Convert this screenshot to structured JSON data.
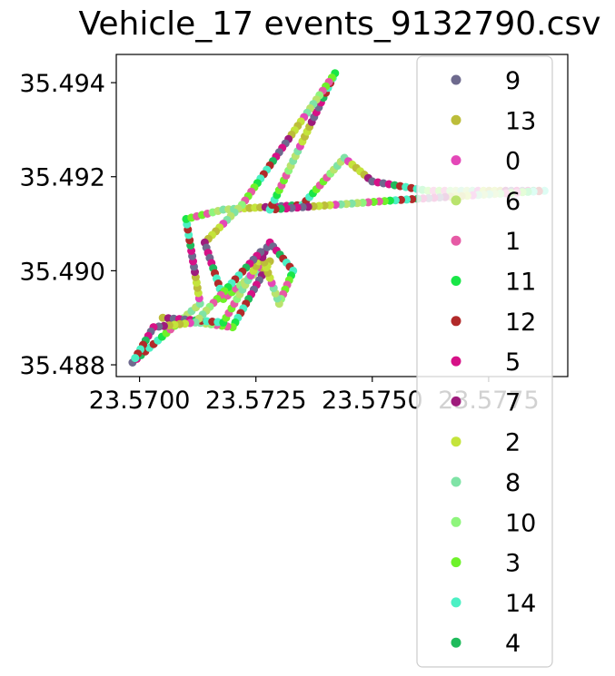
{
  "chart_data": {
    "type": "scatter",
    "title": "Vehicle_17 events_9132790.csv",
    "xlabel": "",
    "ylabel": "",
    "xlim": [
      23.5695,
      23.5792
    ],
    "ylim": [
      35.48775,
      35.4946
    ],
    "xticks": [
      "23.5700",
      "23.5725",
      "23.5750",
      "23.5775"
    ],
    "xtick_values": [
      23.57,
      23.5725,
      23.575,
      23.5775
    ],
    "yticks": [
      "35.488",
      "35.490",
      "35.492",
      "35.494"
    ],
    "ytick_values": [
      35.488,
      35.49,
      35.492,
      35.494
    ],
    "grid": false,
    "legend_position": "right",
    "series": [
      {
        "name": "9",
        "color": "#6e6a8e"
      },
      {
        "name": "13",
        "color": "#bcbd3a"
      },
      {
        "name": "0",
        "color": "#e447b8"
      },
      {
        "name": "6",
        "color": "#b9e36d"
      },
      {
        "name": "1",
        "color": "#e65aa5"
      },
      {
        "name": "11",
        "color": "#19e647"
      },
      {
        "name": "12",
        "color": "#b22a2a"
      },
      {
        "name": "5",
        "color": "#d61187"
      },
      {
        "name": "7",
        "color": "#9e1b7c"
      },
      {
        "name": "2",
        "color": "#c4e43b"
      },
      {
        "name": "8",
        "color": "#7fe3a6"
      },
      {
        "name": "10",
        "color": "#8ef57c"
      },
      {
        "name": "3",
        "color": "#6ef22a"
      },
      {
        "name": "14",
        "color": "#4cf0c4"
      },
      {
        "name": "4",
        "color": "#1fbb5c"
      }
    ],
    "route": [
      [
        23.56985,
        35.48805
      ],
      [
        23.5713,
        35.4893
      ],
      [
        23.571,
        35.4911
      ],
      [
        23.5718,
        35.4913
      ],
      [
        23.5735,
        35.4914
      ],
      [
        23.5744,
        35.4924
      ],
      [
        23.575,
        35.4919
      ],
      [
        23.5762,
        35.4917
      ],
      [
        23.5787,
        35.4917
      ],
      [
        23.5755,
        35.4915
      ],
      [
        23.5728,
        35.4913
      ],
      [
        23.5742,
        35.4942
      ],
      [
        23.5722,
        35.4914
      ],
      [
        23.5714,
        35.4906
      ],
      [
        23.5718,
        35.4894
      ],
      [
        23.5728,
        35.4902
      ],
      [
        23.572,
        35.4888
      ],
      [
        23.5705,
        35.489
      ],
      [
        23.5718,
        35.4889
      ],
      [
        23.5728,
        35.4906
      ],
      [
        23.5733,
        35.49
      ],
      [
        23.573,
        35.4893
      ],
      [
        23.5726,
        35.4904
      ],
      [
        23.5712,
        35.4889
      ],
      [
        23.5703,
        35.4888
      ],
      [
        23.56985,
        35.48805
      ]
    ]
  }
}
